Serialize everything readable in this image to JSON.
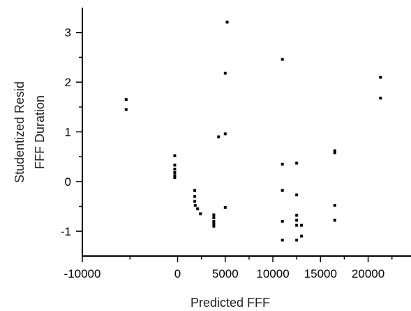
{
  "chart_data": {
    "type": "scatter",
    "title": "",
    "xlabel": "Predicted FFF",
    "ylabel_lines": [
      "Studentized Resid",
      "FFF Duration"
    ],
    "xlim": [
      -10000,
      24500
    ],
    "ylim": [
      -1.5,
      3.5
    ],
    "x_ticks": [
      -10000,
      0,
      5000,
      10000,
      15000,
      20000
    ],
    "x_tick_labels": [
      "-10000",
      "0",
      "5000",
      "10000",
      "15000",
      "20000"
    ],
    "x_minor_ticks": [
      -5000,
      2500,
      7500,
      12500,
      17500,
      22500
    ],
    "y_ticks": [
      -1,
      0,
      1,
      2,
      3
    ],
    "y_tick_labels": [
      "-1",
      "0",
      "1",
      "2",
      "3"
    ],
    "y_minor_ticks": [
      -0.5,
      0.5,
      1.5,
      2.5
    ],
    "grid": false,
    "legend": "none",
    "marker_color": "#000000",
    "series": [
      {
        "points": [
          [
            -5400,
            1.65
          ],
          [
            -5400,
            1.45
          ],
          [
            -300,
            0.52
          ],
          [
            -300,
            0.33
          ],
          [
            -300,
            0.25
          ],
          [
            -300,
            0.18
          ],
          [
            -300,
            0.12
          ],
          [
            -300,
            0.08
          ],
          [
            1800,
            -0.18
          ],
          [
            1800,
            -0.3
          ],
          [
            1800,
            -0.4
          ],
          [
            1850,
            -0.48
          ],
          [
            2100,
            -0.55
          ],
          [
            2400,
            -0.65
          ],
          [
            3800,
            -0.67
          ],
          [
            3800,
            -0.73
          ],
          [
            3800,
            -0.8
          ],
          [
            3800,
            -0.85
          ],
          [
            3800,
            -0.9
          ],
          [
            4300,
            0.9
          ],
          [
            5000,
            0.96
          ],
          [
            5000,
            -0.52
          ],
          [
            5000,
            2.18
          ],
          [
            5200,
            3.21
          ],
          [
            11000,
            2.46
          ],
          [
            11000,
            0.35
          ],
          [
            11000,
            -0.18
          ],
          [
            11000,
            -0.8
          ],
          [
            11000,
            -1.18
          ],
          [
            12500,
            0.37
          ],
          [
            12500,
            -0.27
          ],
          [
            12500,
            -0.68
          ],
          [
            12500,
            -0.78
          ],
          [
            12500,
            -0.88
          ],
          [
            12500,
            -1.18
          ],
          [
            13000,
            -0.88
          ],
          [
            13000,
            -1.1
          ],
          [
            16500,
            0.62
          ],
          [
            16500,
            0.58
          ],
          [
            16500,
            -0.48
          ],
          [
            16500,
            -0.78
          ],
          [
            21300,
            2.1
          ],
          [
            21300,
            1.68
          ]
        ]
      }
    ]
  }
}
